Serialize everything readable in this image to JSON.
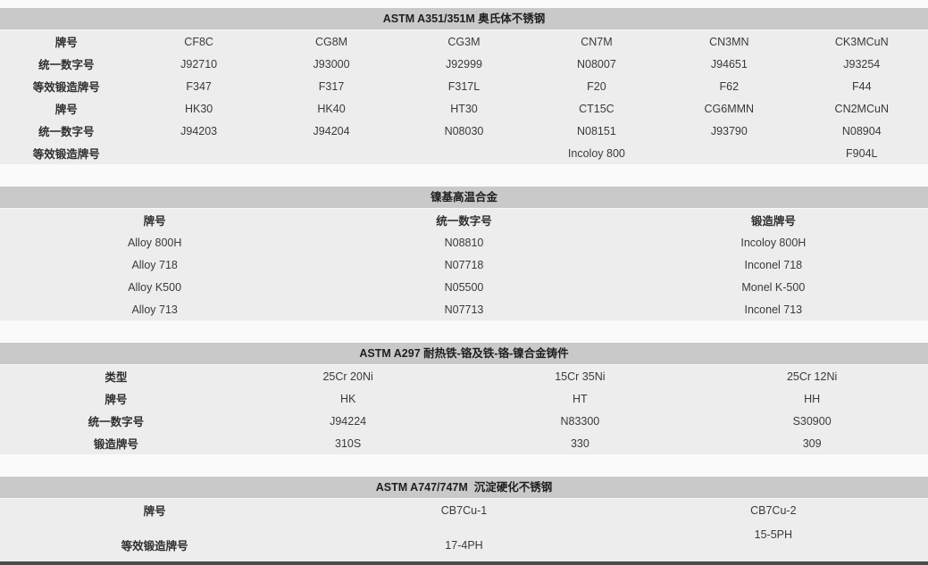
{
  "page": {
    "background": "#fafafa",
    "table_body_color": "#ededed",
    "title_bar_color": "#c9c9c9",
    "text_color": "#3a3a3a",
    "bottom_bar_color": "#4d4d4d"
  },
  "tables": [
    {
      "name": "astm-a351-351m-austenitic-stainless-steel",
      "title": "ASTM A351/351M 奥氏体不锈钢",
      "col_count": 7,
      "rows": [
        {
          "bold": "first",
          "cells": [
            "牌号",
            "CF8C",
            "CG8M",
            "CG3M",
            "CN7M",
            "CN3MN",
            "CK3MCuN"
          ]
        },
        {
          "bold": "first",
          "cells": [
            "统一数字号",
            "J92710",
            "J93000",
            "J92999",
            "N08007",
            "J94651",
            "J93254"
          ]
        },
        {
          "bold": "first",
          "cells": [
            "等效锻造牌号",
            "F347",
            "F317",
            "F317L",
            "F20",
            "F62",
            "F44"
          ]
        },
        {
          "bold": "first",
          "cells": [
            "牌号",
            "HK30",
            "HK40",
            "HT30",
            "CT15C",
            "CG6MMN",
            "CN2MCuN"
          ]
        },
        {
          "bold": "first",
          "cells": [
            "统一数字号",
            "J94203",
            "J94204",
            "N08030",
            "N08151",
            "J93790",
            "N08904"
          ]
        },
        {
          "bold": "first",
          "cells": [
            "等效锻造牌号",
            "",
            "",
            "",
            "Incoloy 800",
            "",
            "F904L"
          ]
        }
      ]
    },
    {
      "name": "nickel-base-superalloy",
      "title": "镍基高温合金",
      "col_count": 3,
      "rows": [
        {
          "bold": "all",
          "cells": [
            "牌号",
            "统一数字号",
            "锻造牌号"
          ]
        },
        {
          "bold": "none",
          "cells": [
            "Alloy 800H",
            "N08810",
            "Incoloy 800H"
          ]
        },
        {
          "bold": "none",
          "cells": [
            "Alloy 718",
            "N07718",
            "Inconel 718"
          ]
        },
        {
          "bold": "none",
          "cells": [
            "Alloy K500",
            "N05500",
            "Monel K-500"
          ]
        },
        {
          "bold": "none",
          "cells": [
            "Alloy 713",
            "N07713",
            "Inconel 713"
          ]
        }
      ]
    },
    {
      "name": "astm-a297-heat-resistant-fe-cr-ni-alloy-castings",
      "title": "ASTM A297 耐热铁-铬及铁-铬-镍合金铸件",
      "col_count": 4,
      "rows": [
        {
          "bold": "first",
          "cells": [
            "类型",
            "25Cr 20Ni",
            "15Cr 35Ni",
            "25Cr 12Ni"
          ]
        },
        {
          "bold": "first",
          "cells": [
            "牌号",
            "HK",
            "HT",
            "HH"
          ]
        },
        {
          "bold": "first",
          "cells": [
            "统一数字号",
            "J94224",
            "N83300",
            "S30900"
          ]
        },
        {
          "bold": "first",
          "cells": [
            "锻造牌号",
            "310S",
            "330",
            "309"
          ]
        }
      ]
    },
    {
      "name": "astm-a747-747m-precipitation-hardening-stainless-steel",
      "title": "ASTM A747/747M  沉淀硬化不锈钢",
      "col_count": 3,
      "rows": [
        {
          "bold": "first",
          "cells": [
            "牌号",
            "CB7Cu-1",
            "CB7Cu-2"
          ]
        },
        {
          "bold": "first",
          "tall": true,
          "top_cells": [
            2
          ],
          "cells": [
            "等效锻造牌号",
            "17-4PH",
            "15-5PH"
          ]
        }
      ]
    }
  ]
}
